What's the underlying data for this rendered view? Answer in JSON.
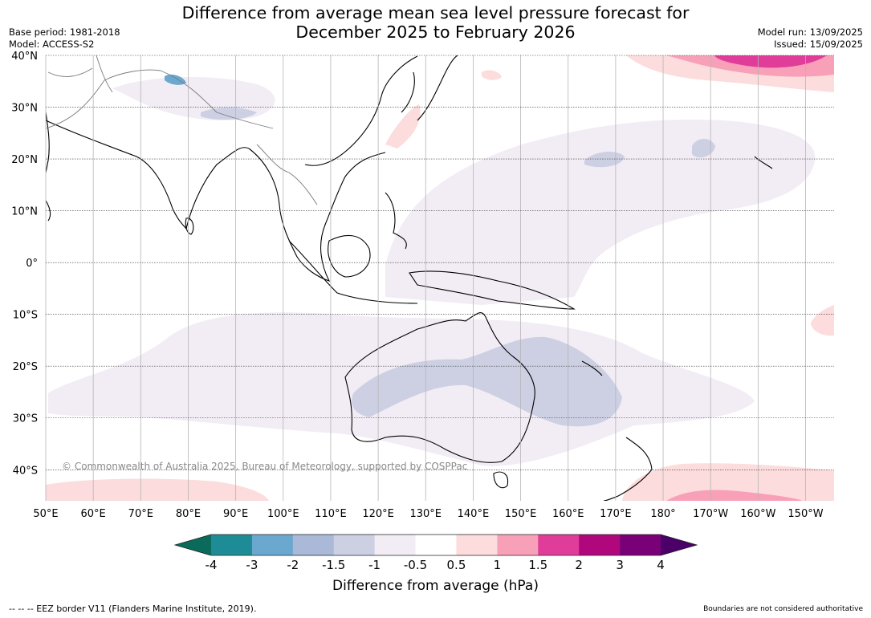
{
  "title": {
    "line1": "Difference from average mean sea level pressure forecast for",
    "line2": "December 2025 to February 2026"
  },
  "meta_left": {
    "base_period": "Base period: 1981-2018",
    "model": "Model: ACCESS-S2"
  },
  "meta_right": {
    "model_run": "Model run: 13/09/2025",
    "issued": "Issued: 15/09/2025"
  },
  "map": {
    "lon_range": [
      50,
      216
    ],
    "lat_range": [
      -46,
      40
    ],
    "lon_ticks": [
      {
        "value": 50,
        "label": "50°E"
      },
      {
        "value": 60,
        "label": "60°E"
      },
      {
        "value": 70,
        "label": "70°E"
      },
      {
        "value": 80,
        "label": "80°E"
      },
      {
        "value": 90,
        "label": "90°E"
      },
      {
        "value": 100,
        "label": "100°E"
      },
      {
        "value": 110,
        "label": "110°E"
      },
      {
        "value": 120,
        "label": "120°E"
      },
      {
        "value": 130,
        "label": "130°E"
      },
      {
        "value": 140,
        "label": "140°E"
      },
      {
        "value": 150,
        "label": "150°E"
      },
      {
        "value": 160,
        "label": "160°E"
      },
      {
        "value": 170,
        "label": "170°E"
      },
      {
        "value": 180,
        "label": "180°"
      },
      {
        "value": 190,
        "label": "170°W"
      },
      {
        "value": 200,
        "label": "160°W"
      },
      {
        "value": 210,
        "label": "150°W"
      }
    ],
    "lat_ticks": [
      {
        "value": 40,
        "label": "40°N"
      },
      {
        "value": 30,
        "label": "30°N"
      },
      {
        "value": 20,
        "label": "20°N"
      },
      {
        "value": 10,
        "label": "10°N"
      },
      {
        "value": 0,
        "label": "0°"
      },
      {
        "value": -10,
        "label": "10°S"
      },
      {
        "value": -20,
        "label": "20°S"
      },
      {
        "value": -30,
        "label": "30°S"
      },
      {
        "value": -40,
        "label": "40°S"
      }
    ],
    "copyright": "© Commonwealth of Australia 2025, Bureau of Meteorology, supported by COSPPac"
  },
  "colorbar": {
    "title": "Difference from average (hPa)",
    "tick_labels": [
      "-4",
      "-3",
      "-2",
      "-1.5",
      "-1",
      "-0.5",
      "0.5",
      "1",
      "1.5",
      "2",
      "3",
      "4"
    ],
    "colors": {
      "below": "#0b6b5a",
      "bins": [
        "#1e8c96",
        "#6aa8cf",
        "#a9b9d7",
        "#cdd0e3",
        "#f2ecf4",
        "#ffffff",
        "#fcdcdc",
        "#f8a0b8",
        "#e03c9a",
        "#b0087c",
        "#7a0077"
      ],
      "above": "#4a0068"
    }
  },
  "footer": {
    "left": "--  --  -- EEZ border V11 (Flanders Marine Institute, 2019).",
    "right": "Boundaries are not considered authoritative"
  }
}
